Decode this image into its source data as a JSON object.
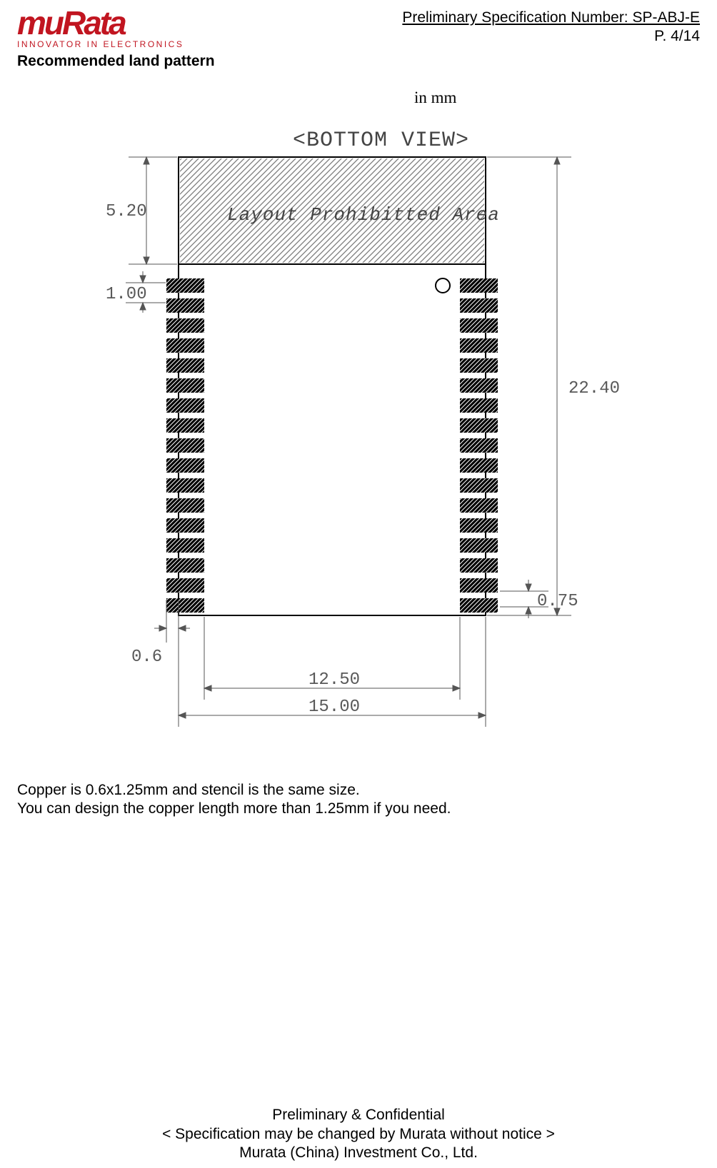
{
  "header": {
    "logo_word": "muRata",
    "logo_tagline": "INNOVATOR IN ELECTRONICS",
    "spec_label": "Preliminary Specification Number: SP-ABJ-E",
    "page_label": "P.  4/14"
  },
  "section_title": "Recommended land pattern",
  "unit_label": "in mm",
  "diagram": {
    "view_title": "<BOTTOM VIEW>",
    "prohibited_text": "Layout Prohibitted Area",
    "dims": {
      "top_band_h": "5.20",
      "pad_pitch": "1.00",
      "pad_w": "0.6",
      "pad_h": "0.75",
      "overall_h": "22.40",
      "inner_w": "12.50",
      "outer_w": "15.00"
    },
    "pads_per_side": 17,
    "colors": {
      "outline": "#000000",
      "dim_line": "#555555",
      "hatch": "#7a7a7a",
      "pad_fill": "#000000",
      "pad_stroke": "#ffffff",
      "bg": "#ffffff",
      "text_dim": "#595959"
    },
    "stroke_widths": {
      "outline": 2,
      "dim": 1
    }
  },
  "notes": {
    "line1": "Copper is 0.6x1.25mm and stencil is the same size.",
    "line2": "You can design the copper length more than 1.25mm if you need."
  },
  "footer": {
    "line1": "Preliminary & Confidential",
    "line2": "< Specification may be changed by Murata without notice >",
    "line3": "Murata (China) Investment Co., Ltd."
  }
}
